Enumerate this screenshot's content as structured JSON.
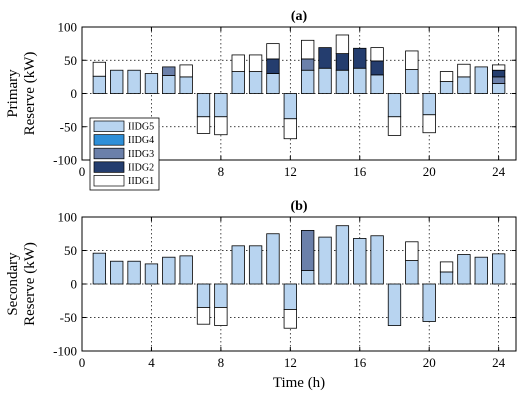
{
  "chart_data": [
    {
      "type": "bar",
      "stacked": true,
      "title": "(a)",
      "ylabel": [
        "Primary",
        "Reserve (kW)"
      ],
      "xlabel": "",
      "xlim": [
        0,
        25
      ],
      "ylim": [
        -100,
        100
      ],
      "xticks": [
        0,
        4,
        8,
        12,
        16,
        20,
        24
      ],
      "yticks": [
        -100,
        -50,
        0,
        50,
        100
      ],
      "grid": true,
      "legend_position": "lower-left",
      "x": [
        1,
        2,
        3,
        4,
        5,
        6,
        7,
        8,
        9,
        10,
        11,
        12,
        13,
        14,
        15,
        16,
        17,
        18,
        19,
        20,
        21,
        22,
        23,
        24
      ],
      "series": [
        {
          "name": "IIDG5",
          "color": "#b8d4f0",
          "values": [
            26,
            35,
            35,
            30,
            27,
            25,
            -35,
            -35,
            33,
            33,
            30,
            -38,
            35,
            38,
            35,
            38,
            28,
            -35,
            36,
            -32,
            18,
            25,
            40,
            15
          ]
        },
        {
          "name": "IIDG4",
          "color": "#2e8fd8",
          "values": [
            0,
            0,
            0,
            0,
            0,
            0,
            0,
            0,
            0,
            0,
            0,
            0,
            0,
            0,
            0,
            0,
            0,
            0,
            0,
            0,
            0,
            0,
            0,
            0
          ]
        },
        {
          "name": "IIDG3",
          "color": "#6b80aa",
          "values": [
            0,
            0,
            0,
            0,
            13,
            0,
            0,
            0,
            0,
            0,
            0,
            0,
            17,
            0,
            0,
            0,
            0,
            0,
            0,
            0,
            0,
            0,
            0,
            10
          ]
        },
        {
          "name": "IIDG2",
          "color": "#243d6e",
          "values": [
            0,
            0,
            0,
            0,
            0,
            0,
            0,
            0,
            0,
            0,
            22,
            0,
            0,
            31,
            25,
            30,
            21,
            0,
            0,
            0,
            0,
            0,
            0,
            10
          ]
        },
        {
          "name": "IIDG1",
          "color": "#ffffff",
          "values": [
            21,
            0,
            0,
            0,
            0,
            18,
            -25,
            -27,
            25,
            25,
            23,
            -30,
            28,
            0,
            28,
            0,
            20,
            -28,
            28,
            -27,
            15,
            19,
            0,
            8
          ]
        }
      ]
    },
    {
      "type": "bar",
      "stacked": true,
      "title": "(b)",
      "ylabel": [
        "Secondary",
        "Reserve (kW)"
      ],
      "xlabel": "Time (h)",
      "xlim": [
        0,
        25
      ],
      "ylim": [
        -100,
        100
      ],
      "xticks": [
        0,
        4,
        8,
        12,
        16,
        20,
        24
      ],
      "yticks": [
        -100,
        -50,
        0,
        50,
        100
      ],
      "grid": true,
      "x": [
        1,
        2,
        3,
        4,
        5,
        6,
        7,
        8,
        9,
        10,
        11,
        12,
        13,
        14,
        15,
        16,
        17,
        18,
        19,
        20,
        21,
        22,
        23,
        24
      ],
      "series": [
        {
          "name": "IIDG5",
          "color": "#b8d4f0",
          "values": [
            46,
            34,
            34,
            30,
            40,
            42,
            -35,
            -35,
            57,
            57,
            75,
            -38,
            20,
            70,
            87,
            68,
            72,
            -62,
            35,
            -56,
            18,
            44,
            40,
            45
          ]
        },
        {
          "name": "IIDG4",
          "color": "#2e8fd8",
          "values": [
            0,
            0,
            0,
            0,
            0,
            0,
            0,
            0,
            0,
            0,
            0,
            0,
            0,
            0,
            0,
            0,
            0,
            0,
            0,
            0,
            0,
            0,
            0,
            0
          ]
        },
        {
          "name": "IIDG3",
          "color": "#6b80aa",
          "values": [
            0,
            0,
            0,
            0,
            0,
            0,
            0,
            0,
            0,
            0,
            0,
            0,
            60,
            0,
            0,
            0,
            0,
            0,
            0,
            0,
            0,
            0,
            0,
            0
          ]
        },
        {
          "name": "IIDG2",
          "color": "#243d6e",
          "values": [
            0,
            0,
            0,
            0,
            0,
            0,
            0,
            0,
            0,
            0,
            0,
            0,
            0,
            0,
            0,
            0,
            0,
            0,
            0,
            0,
            0,
            0,
            0,
            0
          ]
        },
        {
          "name": "IIDG1",
          "color": "#ffffff",
          "values": [
            0,
            0,
            0,
            0,
            0,
            0,
            -25,
            -27,
            0,
            0,
            0,
            -28,
            0,
            0,
            0,
            0,
            0,
            0,
            28,
            0,
            15,
            0,
            0,
            0
          ]
        }
      ]
    }
  ]
}
